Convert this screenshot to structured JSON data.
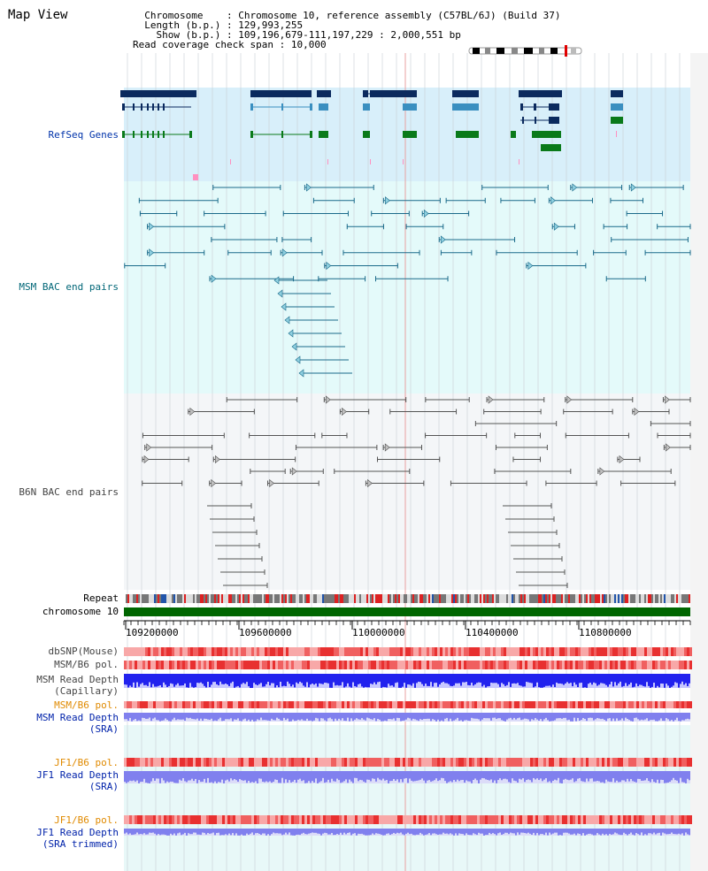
{
  "title": "Map View",
  "info": {
    "chromosome_label": "Chromosome",
    "chromosome_value": "Chromosome 10, reference assembly (C57BL/6J) (Build 37)",
    "length_label": "Length (b.p.)",
    "length_value": "129,993,255",
    "show_label": "Show (b.p.)",
    "show_value": "109,196,679-111,197,229 : 2,000,551 bp",
    "span_label": "Read coverage check span",
    "span_value": "10,000"
  },
  "tracks": {
    "refseq": "RefSeq Genes",
    "msm_bac": "MSM BAC end pairs",
    "b6n_bac": "B6N BAC end pairs",
    "repeat": "Repeat",
    "chromosome": "chromosome 10",
    "dbsnp": "dbSNP(Mouse)",
    "msm_b6_pol": "MSM/B6 pol.",
    "msm_depth_cap_1": "MSM Read Depth",
    "msm_depth_cap_2": "(Capillary)",
    "msm_b6_pol_sra": "MSM/B6 pol.",
    "msm_depth_sra_1": "MSM Read Depth",
    "msm_depth_sra_2": "(SRA)",
    "jf1_b6_pol": "JF1/B6 pol.",
    "jf1_depth_sra_1": "JF1 Read Depth",
    "jf1_depth_sra_2": "(SRA)",
    "jf1_b6_pol_trim": "JF1/B6 pol.",
    "jf1_depth_trim_1": "JF1 Read Depth",
    "jf1_depth_trim_2": "(SRA trimmed)"
  },
  "axis_ticks": [
    "109200000",
    "109600000",
    "110000000",
    "110400000",
    "110800000"
  ],
  "colors": {
    "refseq_bg": "#d8effa",
    "msm_bg": "#e4fafa",
    "b6n_bg": "#f4f6f8",
    "chromosome_bar": "#006600",
    "gene_dark": "#0b2a5e",
    "gene_mid": "#3a8fc0",
    "gene_green": "#0a7a1a",
    "msm_pair": "#1a6a8a",
    "b6n_pair": "#555555",
    "snp_red": "#e84040",
    "depth_blue": "#2222ee",
    "depth_light": "#8080ee"
  }
}
